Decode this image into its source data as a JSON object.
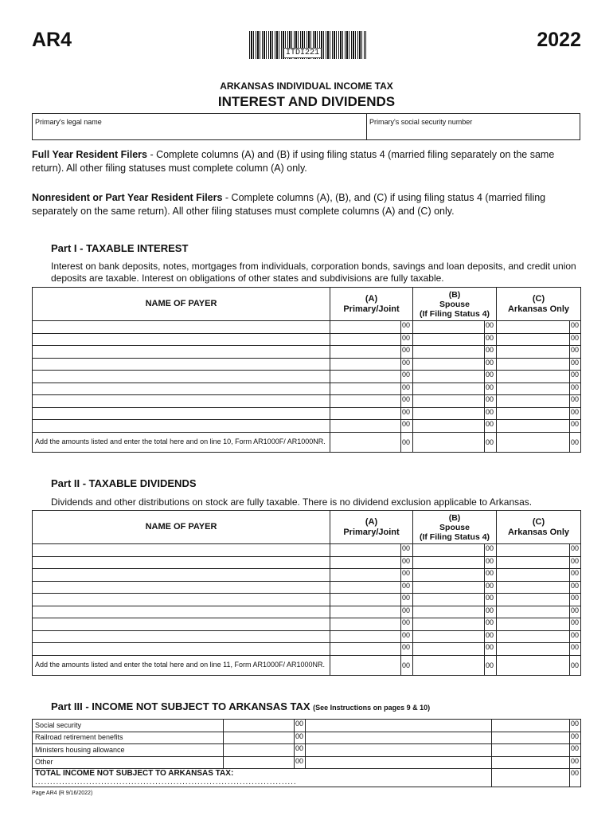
{
  "form_id": "AR4",
  "year": "2022",
  "barcode_text": "ITDI221",
  "agency": "ARKANSAS INDIVIDUAL INCOME TAX",
  "title": "INTEREST AND DIVIDENDS",
  "fields": {
    "name_label": "Primary's legal name",
    "ssn_label": "Primary's social security number"
  },
  "instr1": {
    "bold": "Full Year Resident Filers",
    "text": " - Complete columns (A) and (B) if using filing status 4 (married filing separately on the same return).  All other filing statuses must complete column (A) only."
  },
  "instr2": {
    "bold": "Nonresident or Part Year Resident Filers",
    "text": " - Complete columns (A), (B), and (C) if using filing status 4 (married filing separately on the same return).  All other filing statuses must complete columns (A) and (C) only."
  },
  "part1": {
    "title": "Part I - TAXABLE INTEREST",
    "desc": "Interest on bank deposits, notes, mortgages from individuals, corporation bonds, savings and loan deposits, and credit union deposits are taxable. Interest on obligations of other states and subdivisions are fully taxable.",
    "total_label": "Add the amounts listed and enter the total here and on line 10, Form AR1000F/ AR1000NR."
  },
  "part2": {
    "title": "Part II - TAXABLE DIVIDENDS",
    "desc": "Dividends and other distributions on stock are fully taxable. There is no dividend exclusion applicable to Arkansas.",
    "total_label": "Add the amounts listed and enter the total here and on line 11, Form AR1000F/ AR1000NR."
  },
  "columns": {
    "payer": "NAME OF PAYER",
    "a1": "(A)",
    "a2": "Primary/Joint",
    "b1": "(B)",
    "b2": "Spouse",
    "b3": "(If Filing Status 4)",
    "c1": "(C)",
    "c2": "Arkansas Only"
  },
  "cents": "00",
  "part3": {
    "title": "Part III - INCOME NOT SUBJECT TO ARKANSAS TAX",
    "note": "(See Instructions on pages 9 & 10)",
    "rows": [
      "Social security",
      "Railroad retirement benefits",
      "Ministers housing allowance",
      "Other"
    ],
    "total_label": "TOTAL INCOME NOT SUBJECT TO ARKANSAS TAX:"
  },
  "footer": "Page AR4 (R 9/16/2022)"
}
